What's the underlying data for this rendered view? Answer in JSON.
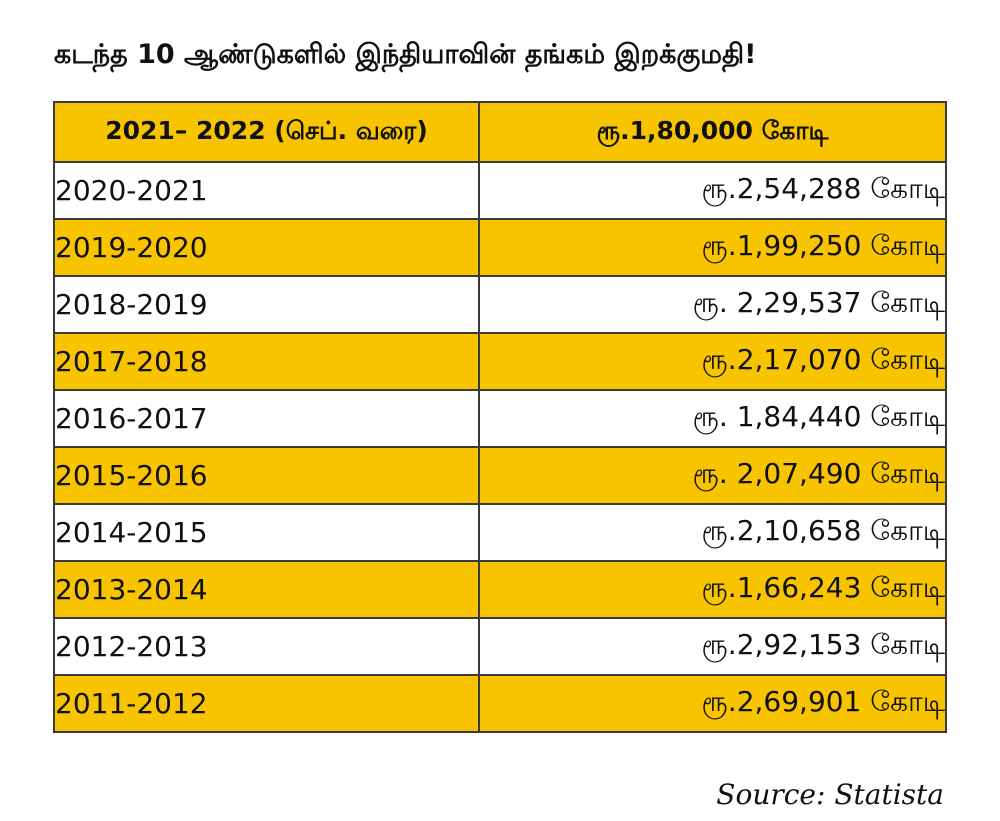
{
  "title": "கடந்த 10 ஆண்டுகளில் இந்தியாவின் தங்கம் இறக்குமதி!",
  "source": "Source: Statista",
  "colors": {
    "highlight": "#f8c400",
    "plain": "#ffffff",
    "border": "#3a3a3a"
  },
  "chart_data": {
    "type": "table",
    "title": "கடந்த 10 ஆண்டுகளில் இந்தியாவின் தங்கம் இறக்குமதி!",
    "source": "Source: Statista",
    "rows": [
      {
        "year": "2021– 2022 (செப். வரை)",
        "amount": "ரூ.1,80,000 கோடி",
        "highlight": true,
        "header": true
      },
      {
        "year": "2020-2021",
        "amount": "ரூ.2,54,288 கோடி",
        "highlight": false
      },
      {
        "year": "2019-2020",
        "amount": "ரூ.1,99,250 கோடி",
        "highlight": true
      },
      {
        "year": "2018-2019",
        "amount": "ரூ. 2,29,537 கோடி",
        "highlight": false
      },
      {
        "year": "2017-2018",
        "amount": "ரூ.2,17,070 கோடி",
        "highlight": true
      },
      {
        "year": "2016-2017",
        "amount": "ரூ. 1,84,440 கோடி",
        "highlight": false
      },
      {
        "year": "2015-2016",
        "amount": "ரூ. 2,07,490 கோடி",
        "highlight": true
      },
      {
        "year": "2014-2015",
        "amount": "ரூ.2,10,658 கோடி",
        "highlight": false
      },
      {
        "year": "2013-2014",
        "amount": "ரூ.1,66,243 கோடி",
        "highlight": true
      },
      {
        "year": "2012-2013",
        "amount": "ரூ.2,92,153 கோடி",
        "highlight": false
      },
      {
        "year": "2011-2012",
        "amount": "ரூ.2,69,901 கோடி",
        "highlight": true
      }
    ]
  }
}
